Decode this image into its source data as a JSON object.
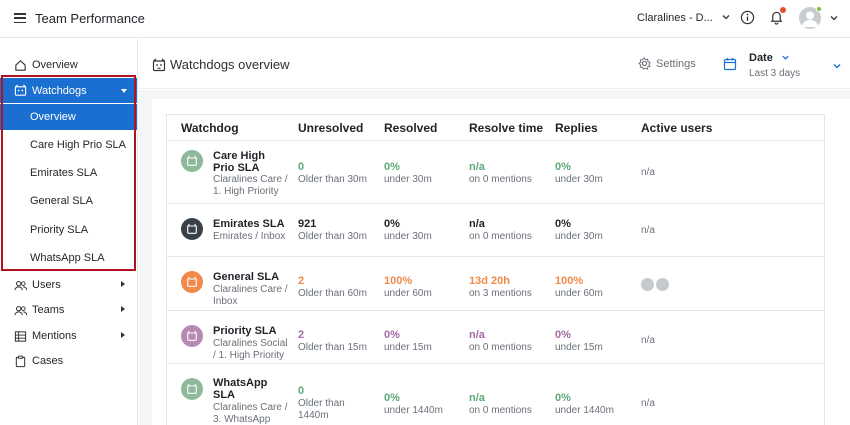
{
  "app": {
    "title": "Team Performance"
  },
  "topbar": {
    "account": "Claralines - D..."
  },
  "sidebar": {
    "items": [
      {
        "label": "Overview",
        "icon": "home-icon"
      },
      {
        "label": "Watchdogs",
        "icon": "watchdog-icon"
      },
      {
        "label": "Users",
        "icon": "users-icon"
      },
      {
        "label": "Teams",
        "icon": "teams-icon"
      },
      {
        "label": "Mentions",
        "icon": "mentions-icon"
      },
      {
        "label": "Cases",
        "icon": "cases-icon"
      }
    ],
    "watchdog_sub": [
      "Overview",
      "Care High Prio SLA",
      "Emirates SLA",
      "General SLA",
      "Priority SLA",
      "WhatsApp SLA"
    ]
  },
  "header": {
    "title": "Watchdogs overview",
    "settings": "Settings",
    "date_label": "Date",
    "date_range": "Last 3 days"
  },
  "table": {
    "columns": [
      "Watchdog",
      "Unresolved",
      "Resolved",
      "Resolve time",
      "Replies",
      "Active users"
    ],
    "rows": [
      {
        "name": "Care High Prio SLA",
        "sub": "Claralines Care / 1. High Priority",
        "color": "#8fb99a",
        "unresolved": "0",
        "unresolved_sub": "Older than 30m",
        "resolved": "0%",
        "resolved_sub": "under 30m",
        "resolve_time": "n/a",
        "resolve_time_sub": "on 0 mentions",
        "replies": "0%",
        "replies_sub": "under 30m",
        "active_users": "n/a"
      },
      {
        "name": "Emirates SLA",
        "sub": "Emirates / Inbox",
        "color": "#3b4148",
        "unresolved": "921",
        "unresolved_sub": "Older than 30m",
        "resolved": "0%",
        "resolved_sub": "under 30m",
        "resolve_time": "n/a",
        "resolve_time_sub": "on 0 mentions",
        "replies": "0%",
        "replies_sub": "under 30m",
        "active_users": "n/a"
      },
      {
        "name": "General SLA",
        "sub": "Claralines Care / Inbox",
        "color": "#f0894a",
        "unresolved": "2",
        "unresolved_sub": "Older than 60m",
        "resolved": "100%",
        "resolved_sub": "under 60m",
        "resolve_time": "13d 20h",
        "resolve_time_sub": "on 3 mentions",
        "replies": "100%",
        "replies_sub": "under 60m",
        "active_users": ""
      },
      {
        "name": "Priority SLA",
        "sub": "Claralines Social / 1. High Priority",
        "color": "#b58bb3",
        "unresolved": "2",
        "unresolved_sub": "Older than 15m",
        "resolved": "0%",
        "resolved_sub": "under 15m",
        "resolve_time": "n/a",
        "resolve_time_sub": "on 0 mentions",
        "replies": "0%",
        "replies_sub": "under 15m",
        "active_users": "n/a"
      },
      {
        "name": "WhatsApp SLA",
        "sub": "Claralines Care / 3. WhatsApp",
        "color": "#8fb99a",
        "unresolved": "0",
        "unresolved_sub": "Older than 1440m",
        "resolved": "0%",
        "resolved_sub": "under 1440m",
        "resolve_time": "n/a",
        "resolve_time_sub": "on 0 mentions",
        "replies": "0%",
        "replies_sub": "under 1440m",
        "active_users": "n/a"
      }
    ]
  },
  "colors": {
    "accent": "#1b6fd1",
    "highlight": "#b3121f",
    "green": "#5fa87a",
    "orange": "#f0894a",
    "purple": "#a66aa4",
    "dark": "#1f2328"
  }
}
